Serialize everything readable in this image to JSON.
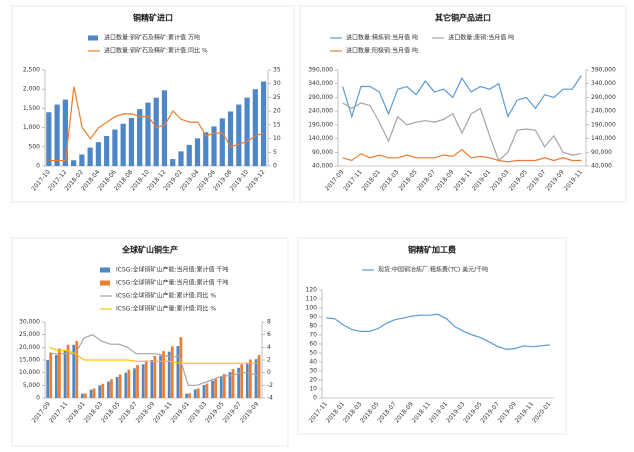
{
  "chart_data": [
    {
      "type": "combo",
      "title": "铜精矿进口",
      "categories": [
        "2017-10",
        null,
        "2017-12",
        null,
        "2018-02",
        null,
        "2018-04",
        null,
        "2018-06",
        null,
        "2018-08",
        null,
        "2018-10",
        null,
        "2018-12",
        null,
        "2019-02",
        null,
        "2019-04",
        null,
        "2019-06",
        null,
        "2019-08",
        null,
        "2019-10",
        null,
        "2019-12"
      ],
      "series": [
        {
          "name": "进口数量:铜矿石及精矿:累计值 万吨",
          "type": "bar",
          "axis": "y",
          "color": "#4f86c6",
          "values": [
            1400,
            1600,
            1730,
            150,
            300,
            480,
            620,
            780,
            950,
            1100,
            1250,
            1480,
            1650,
            1780,
            1970,
            180,
            380,
            550,
            720,
            880,
            1030,
            1240,
            1420,
            1600,
            1780,
            2000,
            2200
          ]
        },
        {
          "name": "进口数量:铜矿石及精矿:累计值:同比 %",
          "type": "line",
          "axis": "y2",
          "color": "#ed7d31",
          "values": [
            2,
            2,
            2,
            29,
            14,
            10,
            14,
            16,
            18,
            19,
            19,
            18,
            18,
            14,
            15,
            20,
            17,
            16,
            16,
            11,
            12,
            12,
            7,
            8,
            9,
            11,
            12
          ]
        }
      ],
      "ylim": [
        0,
        2500
      ],
      "yticks": [
        0,
        500,
        {
          "value": 1000,
          "label": "1,000"
        },
        {
          "value": 1500,
          "label": "1,500"
        },
        {
          "value": 2000,
          "label": "2,000"
        },
        {
          "value": 2500,
          "label": "2,500"
        }
      ],
      "y2lim": [
        0,
        35
      ],
      "y2ticks": [
        0,
        5,
        10,
        15,
        20,
        25,
        30,
        35
      ]
    },
    {
      "type": "combo",
      "title": "其它铜产品进口",
      "categories": [
        "2017-09",
        null,
        "2017-11",
        null,
        "2018-01",
        null,
        "2018-03",
        null,
        "2018-05",
        null,
        "2018-07",
        null,
        "2018-09",
        null,
        "2018-11",
        null,
        "2019-01",
        null,
        "2019-03",
        null,
        "2019-05",
        null,
        "2019-07",
        null,
        "2019-09",
        null,
        "2019-11"
      ],
      "series": [
        {
          "name": "进口数量:精炼铜:当月值 吨",
          "type": "line",
          "axis": "y",
          "color": "#5b9bd5",
          "values": [
            330000,
            220000,
            330000,
            330000,
            310000,
            230000,
            320000,
            330000,
            300000,
            350000,
            310000,
            320000,
            290000,
            360000,
            310000,
            330000,
            320000,
            340000,
            220000,
            280000,
            290000,
            250000,
            300000,
            290000,
            320000,
            320000,
            370000
          ]
        },
        {
          "name": "进口数量:废铜:当月值 吨",
          "type": "line",
          "axis": "y2",
          "color": "#a5a5a5",
          "values": [
            270000,
            250000,
            270000,
            260000,
            200000,
            130000,
            220000,
            190000,
            200000,
            205000,
            200000,
            210000,
            230000,
            160000,
            230000,
            250000,
            150000,
            60000,
            90000,
            170000,
            175000,
            170000,
            110000,
            150000,
            90000,
            80000,
            85000
          ]
        },
        {
          "name": "进口数量:阳极铜:当月值 吨",
          "type": "line",
          "axis": "y",
          "color": "#ed7d31",
          "values": [
            70000,
            60000,
            85000,
            70000,
            80000,
            70000,
            70000,
            80000,
            70000,
            70000,
            70000,
            80000,
            75000,
            100000,
            70000,
            75000,
            70000,
            60000,
            55000,
            60000,
            60000,
            60000,
            70000,
            60000,
            70000,
            60000,
            60000
          ]
        }
      ],
      "ylim": [
        40000,
        390000
      ],
      "yticks": [
        {
          "value": 40000,
          "label": "40,000"
        },
        {
          "value": 90000,
          "label": "90,000"
        },
        {
          "value": 140000,
          "label": "140,000"
        },
        {
          "value": 190000,
          "label": "190,000"
        },
        {
          "value": 240000,
          "label": "240,000"
        },
        {
          "value": 290000,
          "label": "290,000"
        },
        {
          "value": 340000,
          "label": "340,000"
        },
        {
          "value": 390000,
          "label": "390,000"
        }
      ],
      "y2lim": [
        40000,
        390000
      ],
      "y2ticks": [
        {
          "value": 40000,
          "label": "40,000"
        },
        {
          "value": 90000,
          "label": "90,000"
        },
        {
          "value": 140000,
          "label": "140,000"
        },
        {
          "value": 190000,
          "label": "190,000"
        },
        {
          "value": 240000,
          "label": "240,000"
        },
        {
          "value": 290000,
          "label": "290,000"
        },
        {
          "value": 340000,
          "label": "340,000"
        },
        {
          "value": 390000,
          "label": "390,000"
        }
      ]
    },
    {
      "type": "combo",
      "title": "全球矿山铜生产",
      "categories": [
        "2017-09",
        null,
        "2017-11",
        null,
        "2018-01",
        null,
        "2018-03",
        null,
        "2018-05",
        null,
        "2018-07",
        null,
        "2018-09",
        null,
        "2018-11",
        null,
        "2019-01",
        null,
        "2019-03",
        null,
        "2019-05",
        null,
        "2019-07",
        null,
        "2019-09"
      ],
      "series": [
        {
          "name": "ICSG:全球铜矿山产能:当月值:累计值 千吨",
          "type": "bar",
          "axis": "y",
          "color": "#4f86c6",
          "values": [
            15000,
            17000,
            19000,
            21000,
            1700,
            3300,
            5000,
            6500,
            8300,
            10000,
            11700,
            13300,
            15000,
            16700,
            18300,
            20500,
            1700,
            3400,
            5100,
            6800,
            8500,
            10200,
            11900,
            13600,
            15300
          ]
        },
        {
          "name": "ICSG:全球铜矿山产量:当月值:累计值 千吨",
          "type": "bar",
          "axis": "y",
          "color": "#ed7d31",
          "values": [
            18000,
            19500,
            21000,
            22500,
            1800,
            3800,
            5600,
            7400,
            9300,
            11200,
            13000,
            14800,
            16600,
            18500,
            20400,
            24000,
            1900,
            3800,
            5700,
            7600,
            9500,
            11400,
            13300,
            15200,
            17000
          ]
        },
        {
          "name": "ICSG:全球铜矿山产能:累计值:同比 %",
          "type": "line",
          "axis": "y2",
          "color": "#a5a5a5",
          "values": [
            3,
            3,
            3,
            3,
            5.5,
            6,
            5,
            4.5,
            4.5,
            4,
            3,
            3,
            3,
            2.8,
            2.5,
            2.5,
            -2,
            -2,
            -1.5,
            -1,
            -0.5,
            -0.5,
            0,
            0,
            -0.5
          ]
        },
        {
          "name": "ICSG:全球铜矿山产量:累计值:同比 %",
          "type": "line",
          "axis": "y2",
          "color": "#ffc000",
          "values": [
            4,
            3.5,
            3.5,
            3,
            2,
            2,
            2,
            2,
            2,
            2,
            1.8,
            1.8,
            1.8,
            1.8,
            1.8,
            1.5,
            1.5,
            1.5,
            1.5,
            1.5,
            1.5,
            1.5,
            1.5,
            1.5,
            1.5
          ]
        }
      ],
      "ylim": [
        0,
        30000
      ],
      "yticks": [
        0,
        {
          "value": 5000,
          "label": "5,000"
        },
        {
          "value": 10000,
          "label": "10,000"
        },
        {
          "value": 15000,
          "label": "15,000"
        },
        {
          "value": 20000,
          "label": "20,000"
        },
        {
          "value": 25000,
          "label": "25,000"
        },
        {
          "value": 30000,
          "label": "30,000"
        }
      ],
      "y2lim": [
        -4,
        8
      ],
      "y2ticks": [
        -4,
        -2,
        0,
        2,
        4,
        6,
        8
      ]
    },
    {
      "type": "combo",
      "title": "铜精矿加工费",
      "categories": [
        "2017-11",
        null,
        "2018-01",
        null,
        "2018-03",
        null,
        "2018-05",
        null,
        "2018-07",
        null,
        "2018-09",
        null,
        "2018-11",
        null,
        "2019-01",
        null,
        "2019-03",
        null,
        "2019-05",
        null,
        "2019-07",
        null,
        "2019-09",
        null,
        "2019-11",
        null,
        "2020-01"
      ],
      "series": [
        {
          "name": "现货:中国铜冶炼厂:粗炼费(TC) 美元/千吨",
          "type": "line",
          "axis": "y",
          "color": "#5b9bd5",
          "values": [
            89,
            88,
            81,
            76,
            74,
            74,
            77,
            83,
            87,
            89,
            91,
            92,
            92,
            93,
            88,
            79,
            74,
            70,
            67,
            62,
            57,
            54,
            55,
            58,
            57,
            58,
            59
          ]
        }
      ],
      "ylim": [
        0,
        120
      ],
      "yticks": [
        0,
        10,
        20,
        30,
        40,
        50,
        60,
        70,
        80,
        90,
        100,
        110,
        120
      ]
    }
  ]
}
